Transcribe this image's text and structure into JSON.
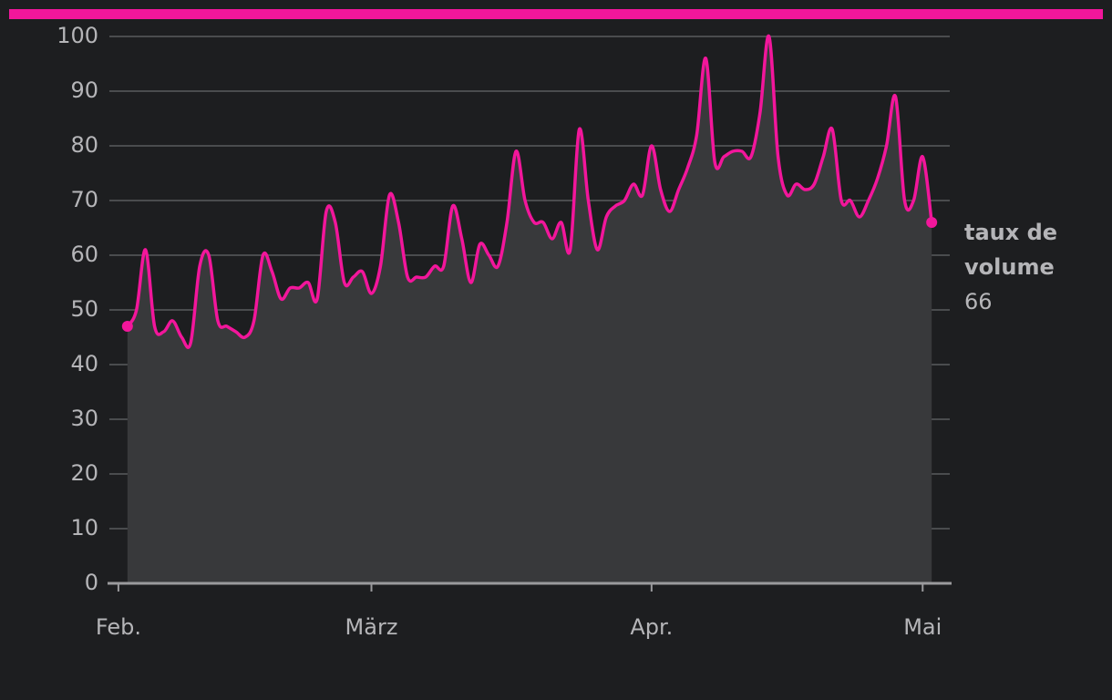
{
  "chart_data": {
    "type": "area",
    "x": [
      1,
      2,
      3,
      4,
      5,
      6,
      7,
      8,
      9,
      10,
      11,
      12,
      13,
      14,
      15,
      16,
      17,
      18,
      19,
      20,
      21,
      22,
      23,
      24,
      25,
      26,
      27,
      28,
      29,
      30,
      31,
      32,
      33,
      34,
      35,
      36,
      37,
      38,
      39,
      40,
      41,
      42,
      43,
      44,
      45,
      46,
      47,
      48,
      49,
      50,
      51,
      52,
      53,
      54,
      55,
      56,
      57,
      58,
      59,
      60,
      61,
      62,
      63,
      64,
      65,
      66,
      67,
      68,
      69,
      70,
      71,
      72,
      73,
      74,
      75,
      76,
      77,
      78,
      79,
      80,
      81,
      82,
      83,
      84,
      85,
      86,
      87,
      88,
      89,
      90
    ],
    "series": [
      {
        "name": "taux de volume",
        "color": "#f2169b",
        "values": [
          47,
          50,
          61,
          47,
          46,
          48,
          45,
          44,
          58,
          60,
          48,
          47,
          46,
          45,
          48,
          60,
          57,
          52,
          54,
          54,
          55,
          52,
          68,
          66,
          55,
          56,
          57,
          53,
          58,
          71,
          66,
          56,
          56,
          56,
          58,
          58,
          69,
          63,
          55,
          62,
          60,
          58,
          66,
          79,
          70,
          66,
          66,
          63,
          66,
          61,
          83,
          70,
          61,
          67,
          69,
          70,
          73,
          71,
          80,
          72,
          68,
          72,
          76,
          82,
          96,
          77,
          78,
          79,
          79,
          78,
          86,
          100,
          78,
          71,
          73,
          72,
          73,
          78,
          83,
          70,
          70,
          67,
          70,
          74,
          80,
          89,
          70,
          70,
          78,
          66
        ]
      }
    ],
    "xlim": [
      -1,
      92
    ],
    "xticks": [
      {
        "value": 0,
        "label": "Feb."
      },
      {
        "value": 28,
        "label": "März"
      },
      {
        "value": 59,
        "label": "Apr."
      },
      {
        "value": 89,
        "label": "Mai"
      }
    ],
    "ylim": [
      0,
      100
    ],
    "yticks": [
      0,
      10,
      20,
      30,
      40,
      50,
      60,
      70,
      80,
      90,
      100
    ],
    "grid": true
  }
}
